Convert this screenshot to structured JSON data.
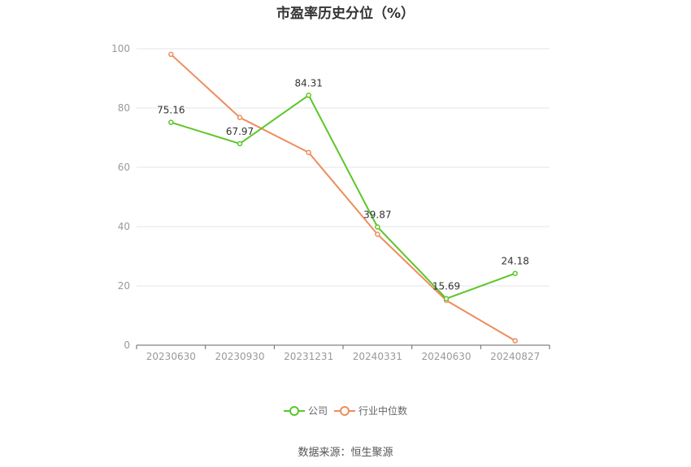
{
  "chart_data": {
    "type": "line",
    "title": "市盈率历史分位（%）",
    "categories": [
      "20230630",
      "20230930",
      "20231231",
      "20240331",
      "20240630",
      "20240827"
    ],
    "series": [
      {
        "name": "公司",
        "color": "#5cc628",
        "values": [
          75.16,
          67.97,
          84.31,
          39.87,
          15.69,
          24.18
        ],
        "show_labels": true
      },
      {
        "name": "行业中位数",
        "color": "#ee8c5c",
        "values": [
          98.1,
          76.8,
          65.0,
          37.4,
          15.1,
          1.5
        ],
        "show_labels": false
      }
    ],
    "ylim": [
      0,
      100
    ],
    "yticks": [
      0,
      20,
      40,
      60,
      80,
      100
    ],
    "xlabel": "",
    "ylabel": "",
    "grid": true,
    "legend_position": "bottom"
  },
  "footer": {
    "source": "数据来源：恒生聚源"
  }
}
